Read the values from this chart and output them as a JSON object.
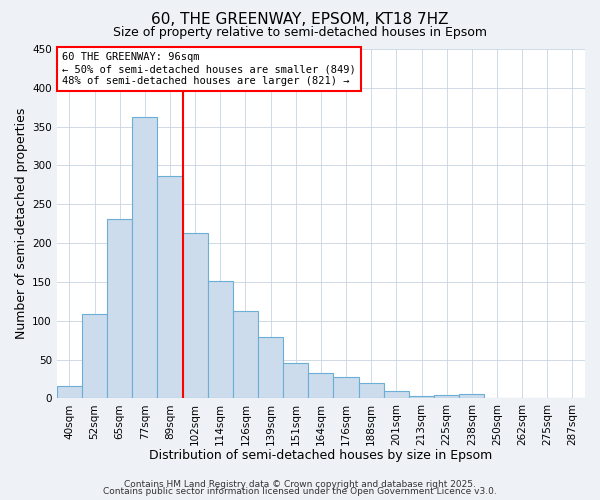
{
  "title": "60, THE GREENWAY, EPSOM, KT18 7HZ",
  "subtitle": "Size of property relative to semi-detached houses in Epsom",
  "xlabel": "Distribution of semi-detached houses by size in Epsom",
  "ylabel": "Number of semi-detached properties",
  "bar_labels": [
    "40sqm",
    "52sqm",
    "65sqm",
    "77sqm",
    "89sqm",
    "102sqm",
    "114sqm",
    "126sqm",
    "139sqm",
    "151sqm",
    "164sqm",
    "176sqm",
    "188sqm",
    "201sqm",
    "213sqm",
    "225sqm",
    "238sqm",
    "250sqm",
    "262sqm",
    "275sqm",
    "287sqm"
  ],
  "bar_values": [
    16,
    109,
    231,
    362,
    287,
    213,
    151,
    112,
    79,
    45,
    33,
    27,
    20,
    9,
    3,
    4,
    5,
    1,
    0,
    0,
    0
  ],
  "bar_color": "#ccdcec",
  "bar_edge_color": "#6baed6",
  "ylim": [
    0,
    450
  ],
  "yticks": [
    0,
    50,
    100,
    150,
    200,
    250,
    300,
    350,
    400,
    450
  ],
  "property_label": "60 THE GREENWAY: 96sqm",
  "annotation_line1": "← 50% of semi-detached houses are smaller (849)",
  "annotation_line2": "48% of semi-detached houses are larger (821) →",
  "vline_x_index": 4.5,
  "footnote1": "Contains HM Land Registry data © Crown copyright and database right 2025.",
  "footnote2": "Contains public sector information licensed under the Open Government Licence v3.0.",
  "background_color": "#eef2f7",
  "plot_bg_color": "#ffffff",
  "grid_color": "#c8d4e0",
  "title_fontsize": 11,
  "subtitle_fontsize": 9,
  "axis_label_fontsize": 9,
  "tick_fontsize": 7.5,
  "footnote_fontsize": 6.5
}
